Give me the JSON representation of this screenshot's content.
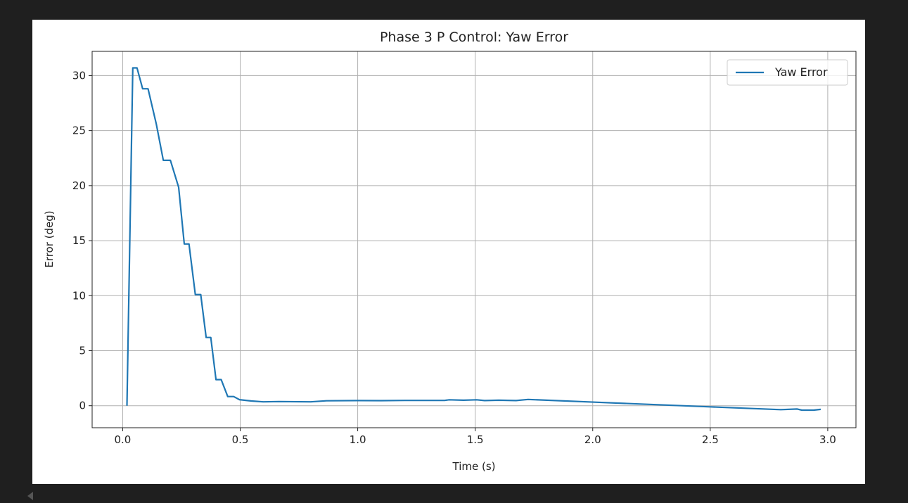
{
  "chart_data": {
    "type": "line",
    "title": "Phase 3 P Control: Yaw Error",
    "xlabel": "Time (s)",
    "ylabel": "Error (deg)",
    "xlim": [
      -0.13,
      3.12
    ],
    "ylim": [
      -2.0,
      32.2
    ],
    "xticks": [
      0.0,
      0.5,
      1.0,
      1.5,
      2.0,
      2.5,
      3.0
    ],
    "xtick_labels": [
      "0.0",
      "0.5",
      "1.0",
      "1.5",
      "2.0",
      "2.5",
      "3.0"
    ],
    "yticks": [
      0,
      5,
      10,
      15,
      20,
      25,
      30
    ],
    "ytick_labels": [
      "0",
      "5",
      "10",
      "15",
      "20",
      "25",
      "30"
    ],
    "grid": true,
    "legend_position": "top-right",
    "series": [
      {
        "name": "Yaw Error",
        "color": "#1f77b4",
        "x": [
          0.018,
          0.043,
          0.061,
          0.085,
          0.108,
          0.143,
          0.173,
          0.203,
          0.238,
          0.262,
          0.282,
          0.309,
          0.332,
          0.355,
          0.375,
          0.397,
          0.419,
          0.447,
          0.472,
          0.497,
          0.517,
          0.548,
          0.598,
          0.665,
          0.8,
          0.867,
          1.0,
          1.1,
          1.2,
          1.37,
          1.389,
          1.45,
          1.506,
          1.54,
          1.6,
          1.674,
          1.708,
          1.725,
          2.01,
          2.5,
          2.8,
          2.87,
          2.89,
          2.94,
          2.97
        ],
        "y": [
          0,
          30.7,
          30.7,
          28.8,
          28.8,
          25.6,
          22.3,
          22.3,
          19.85,
          14.7,
          14.7,
          10.1,
          10.1,
          6.2,
          6.2,
          2.37,
          2.37,
          0.83,
          0.83,
          0.55,
          0.5,
          0.43,
          0.35,
          0.38,
          0.35,
          0.45,
          0.47,
          0.46,
          0.48,
          0.48,
          0.54,
          0.5,
          0.54,
          0.47,
          0.5,
          0.47,
          0.54,
          0.57,
          0.32,
          -0.1,
          -0.36,
          -0.3,
          -0.4,
          -0.4,
          -0.33
        ]
      }
    ]
  }
}
